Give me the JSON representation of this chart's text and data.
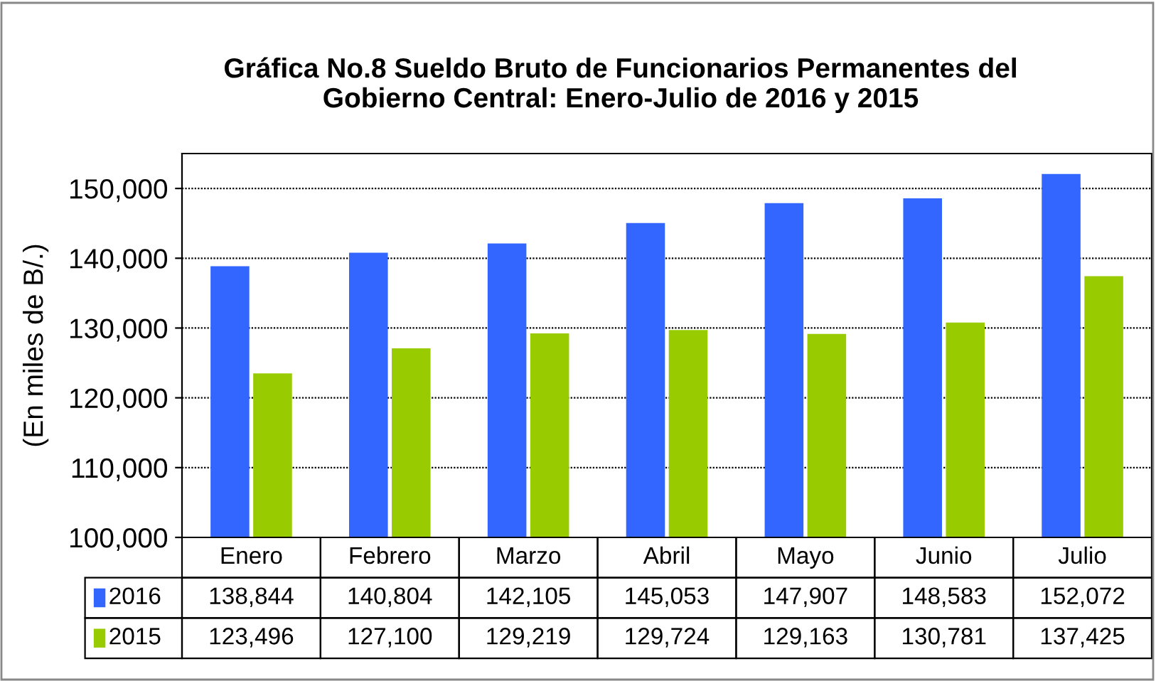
{
  "chart_data": {
    "type": "bar",
    "title": "Gráfica No.8 Sueldo Bruto de Funcionarios Permanentes del\nGobierno Central: Enero-Julio de 2016 y 2015",
    "ylabel": "(En miles de B/.)",
    "categories": [
      "Enero",
      "Febrero",
      "Marzo",
      "Abril",
      "Mayo",
      "Junio",
      "Julio"
    ],
    "series": [
      {
        "name": "2016",
        "color": "#3366ff",
        "values": [
          138844,
          140804,
          142105,
          145053,
          147907,
          148583,
          152072
        ],
        "value_labels": [
          "138,844",
          "140,804",
          "142,105",
          "145,053",
          "147,907",
          "148,583",
          "152,072"
        ]
      },
      {
        "name": "2015",
        "color": "#99cc00",
        "values": [
          123496,
          127100,
          129219,
          129724,
          129163,
          130781,
          137425
        ],
        "value_labels": [
          "123,496",
          "127,100",
          "129,219",
          "129,724",
          "129,163",
          "130,781",
          "137,425"
        ]
      }
    ],
    "ylim": [
      100000,
      155000
    ],
    "yticks": [
      {
        "value": 100000,
        "label": "100,000"
      },
      {
        "value": 110000,
        "label": "110,000"
      },
      {
        "value": 120000,
        "label": "120,000"
      },
      {
        "value": 130000,
        "label": "130,000"
      },
      {
        "value": 140000,
        "label": "140,000"
      },
      {
        "value": 150000,
        "label": "150,000"
      }
    ],
    "grid": "y",
    "legend": "bottom"
  }
}
